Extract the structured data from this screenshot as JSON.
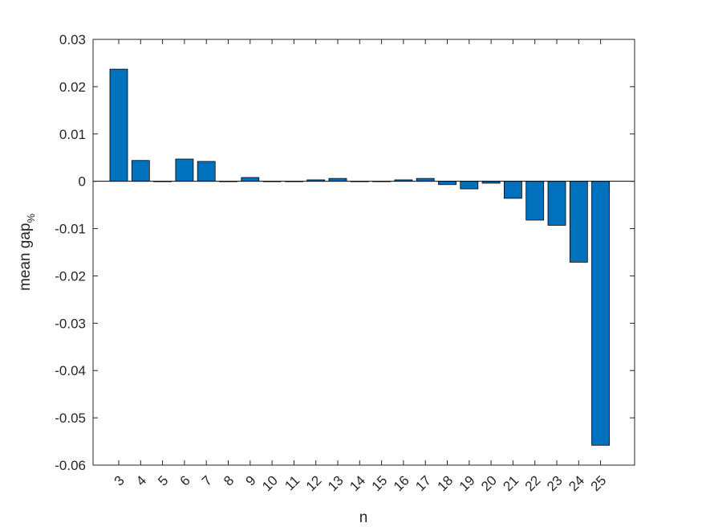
{
  "chart_data": {
    "type": "bar",
    "categories": [
      "3",
      "4",
      "5",
      "6",
      "7",
      "8",
      "9",
      "10",
      "11",
      "12",
      "13",
      "14",
      "15",
      "16",
      "17",
      "18",
      "19",
      "20",
      "21",
      "22",
      "23",
      "24",
      "25"
    ],
    "values": [
      0.0237,
      0.0044,
      0.0,
      0.0047,
      0.0042,
      0.0,
      0.0008,
      0.0,
      0.0,
      0.0003,
      0.0006,
      0.0,
      0.0,
      0.0003,
      0.0006,
      -0.0007,
      -0.0016,
      -0.0004,
      -0.0036,
      -0.0082,
      -0.0093,
      -0.0171,
      -0.0558
    ],
    "xlabel": "n",
    "ylabel": {
      "main": "mean gap",
      "subscript": "%"
    },
    "ylim": [
      -0.06,
      0.03
    ],
    "yticks": [
      "-0.06",
      "-0.05",
      "-0.04",
      "-0.03",
      "-0.02",
      "-0.01",
      "0",
      "0.01",
      "0.02",
      "0.03"
    ],
    "bar_color": "#0072BD",
    "edge_color": "#000000",
    "grid": false,
    "box": true
  }
}
